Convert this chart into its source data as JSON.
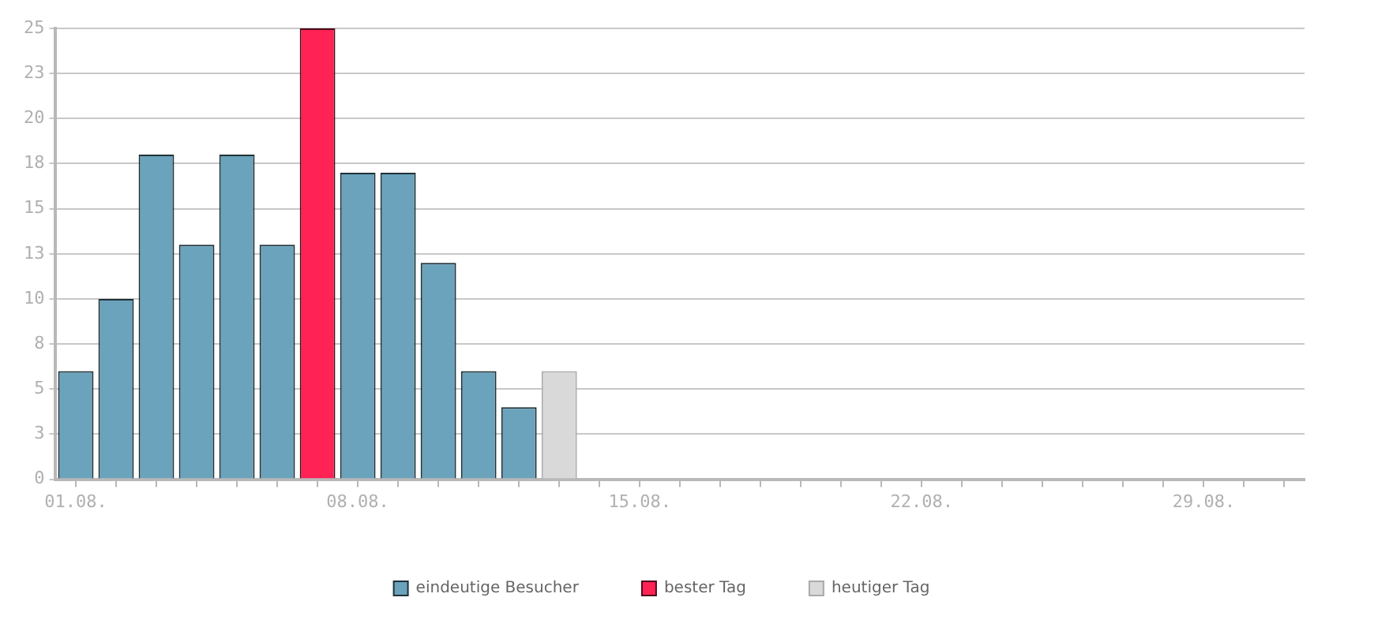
{
  "chart_data": {
    "type": "bar",
    "stacked": true,
    "categories": [
      "01.08.",
      null,
      null,
      null,
      null,
      null,
      null,
      "08.08.",
      null,
      null,
      null,
      null,
      null,
      null,
      "15.08.",
      null,
      null,
      null,
      null,
      null,
      null,
      "22.08.",
      null,
      null,
      null,
      null,
      null,
      null,
      "29.08.",
      null,
      null
    ],
    "series": [
      {
        "name": "eindeutige Besucher",
        "color": "#6aa3bb",
        "values": [
          6,
          10,
          18,
          13,
          18,
          13,
          null,
          17,
          17,
          12,
          6,
          4,
          null,
          null,
          null,
          null,
          null,
          null,
          null,
          null,
          null,
          null,
          null,
          null,
          null,
          null,
          null,
          null,
          null,
          null,
          null
        ]
      },
      {
        "name": "bester Tag",
        "color": "#ff2255",
        "values": [
          null,
          null,
          null,
          null,
          null,
          null,
          25,
          null,
          null,
          null,
          null,
          null,
          null,
          null,
          null,
          null,
          null,
          null,
          null,
          null,
          null,
          null,
          null,
          null,
          null,
          null,
          null,
          null,
          null,
          null,
          null
        ]
      },
      {
        "name": "heutiger Tag",
        "color": "#d9d9d9",
        "values": [
          null,
          null,
          null,
          null,
          null,
          null,
          null,
          null,
          null,
          null,
          null,
          null,
          6,
          null,
          null,
          null,
          null,
          null,
          null,
          null,
          null,
          null,
          null,
          null,
          null,
          null,
          null,
          null,
          null,
          null,
          null
        ]
      }
    ],
    "ylim": [
      0,
      25
    ],
    "yticks": [
      0,
      {
        "value": 2.5,
        "label": "3"
      },
      5,
      {
        "value": 7.5,
        "label": "8"
      },
      10,
      {
        "value": 12.5,
        "label": "13"
      },
      15,
      {
        "value": 17.5,
        "label": "18"
      },
      20,
      {
        "value": 22.5,
        "label": "23"
      },
      25
    ],
    "grid": "y",
    "legend": "bottom"
  }
}
